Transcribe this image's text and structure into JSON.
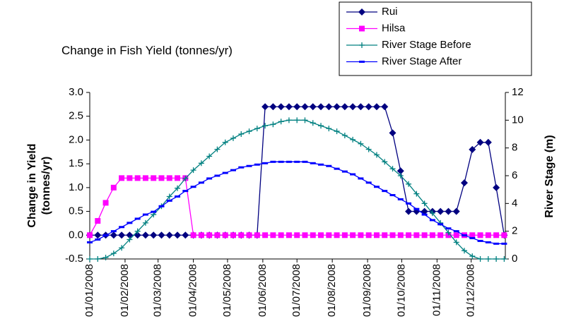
{
  "chart_data": {
    "type": "line",
    "title": "Change in Fish Yield (tonnes/yr)",
    "y_label": "Change in Yield (tonnes/yr)",
    "y2_label": "River Stage (m)",
    "x": [
      "01/01/2008",
      "08/01/2008",
      "15/01/2008",
      "22/01/2008",
      "29/01/2008",
      "05/02/2008",
      "12/02/2008",
      "19/02/2008",
      "26/02/2008",
      "04/03/2008",
      "11/03/2008",
      "18/03/2008",
      "25/03/2008",
      "01/04/2008",
      "08/04/2008",
      "15/04/2008",
      "22/04/2008",
      "29/04/2008",
      "06/05/2008",
      "13/05/2008",
      "20/05/2008",
      "27/05/2008",
      "03/06/2008",
      "10/06/2008",
      "17/06/2008",
      "24/06/2008",
      "01/07/2008",
      "08/07/2008",
      "15/07/2008",
      "22/07/2008",
      "29/07/2008",
      "05/08/2008",
      "12/08/2008",
      "19/08/2008",
      "26/08/2008",
      "02/09/2008",
      "09/09/2008",
      "16/09/2008",
      "23/09/2008",
      "30/09/2008",
      "07/10/2008",
      "14/10/2008",
      "21/10/2008",
      "28/10/2008",
      "04/11/2008",
      "11/11/2008",
      "18/11/2008",
      "25/11/2008",
      "02/12/2008",
      "09/12/2008",
      "16/12/2008",
      "23/12/2008",
      "30/12/2008"
    ],
    "xlim": [
      "01/01/2008",
      "31/12/2008"
    ],
    "xticks": [
      "01/01/2008",
      "01/02/2008",
      "01/03/2008",
      "01/04/2008",
      "01/05/2008",
      "01/06/2008",
      "01/07/2008",
      "01/08/2008",
      "01/09/2008",
      "01/10/2008",
      "01/11/2008",
      "01/12/2008"
    ],
    "ylim": [
      -0.5,
      3
    ],
    "yticks": [
      -0.5,
      {
        "value": 0,
        "label": "0.0"
      },
      0.5,
      {
        "value": 1,
        "label": "1.0"
      },
      1.5,
      {
        "value": 2,
        "label": "2.0"
      },
      2.5,
      {
        "value": 3,
        "label": "3.0"
      }
    ],
    "y2lim": [
      0,
      12
    ],
    "y2ticks": [
      0,
      2,
      4,
      6,
      8,
      10,
      12
    ],
    "grid": false,
    "legend": "top-right",
    "series": [
      {
        "name": "Rui",
        "color": "#000080",
        "marker": "diamond",
        "values": [
          0,
          0,
          0,
          0,
          0,
          0,
          0,
          0,
          0,
          0,
          0,
          0,
          0,
          0,
          0,
          0,
          0,
          0,
          0,
          0,
          0,
          0,
          2.7,
          2.7,
          2.7,
          2.7,
          2.7,
          2.7,
          2.7,
          2.7,
          2.7,
          2.7,
          2.7,
          2.7,
          2.7,
          2.7,
          2.7,
          2.7,
          2.15,
          1.35,
          0.5,
          0.5,
          0.5,
          0.5,
          0.5,
          0.5,
          0.5,
          1.1,
          1.8,
          1.95,
          1.95,
          1.0,
          0
        ]
      },
      {
        "name": "Hilsa",
        "color": "#ff00ff",
        "marker": "square",
        "values": [
          0,
          0.3,
          0.68,
          1.0,
          1.2,
          1.2,
          1.2,
          1.2,
          1.2,
          1.2,
          1.2,
          1.2,
          1.2,
          0,
          0,
          0,
          0,
          0,
          0,
          0,
          0,
          0,
          0,
          0,
          0,
          0,
          0,
          0,
          0,
          0,
          0,
          0,
          0,
          0,
          0,
          0,
          0,
          0,
          0,
          0,
          0,
          0,
          0,
          0,
          0,
          0,
          0,
          0,
          0,
          0,
          0,
          0,
          0
        ]
      },
      {
        "name": "River Stage Before",
        "color": "#008080",
        "marker": "plus",
        "axis": "y2",
        "values": [
          0,
          0,
          0.1,
          0.4,
          0.8,
          1.4,
          2.0,
          2.6,
          3.2,
          3.8,
          4.5,
          5.1,
          5.8,
          6.4,
          6.9,
          7.4,
          7.9,
          8.4,
          8.7,
          9.0,
          9.2,
          9.4,
          9.6,
          9.7,
          9.9,
          10.0,
          10.0,
          10.0,
          9.8,
          9.6,
          9.4,
          9.2,
          8.9,
          8.6,
          8.3,
          7.9,
          7.5,
          7.0,
          6.5,
          6.0,
          5.4,
          4.7,
          4.0,
          3.3,
          2.6,
          1.9,
          1.2,
          0.6,
          0.2,
          0,
          0,
          0,
          0
        ]
      },
      {
        "name": "River Stage After",
        "color": "#0000ff",
        "marker": "dash",
        "axis": "y2",
        "values": [
          1.2,
          1.4,
          1.7,
          2.0,
          2.3,
          2.6,
          2.9,
          3.2,
          3.4,
          3.8,
          4.2,
          4.5,
          4.9,
          5.2,
          5.5,
          5.8,
          6.0,
          6.2,
          6.4,
          6.6,
          6.7,
          6.8,
          6.9,
          7.0,
          7.0,
          7.0,
          7.0,
          7.0,
          6.9,
          6.8,
          6.7,
          6.5,
          6.3,
          6.1,
          5.8,
          5.5,
          5.2,
          4.9,
          4.6,
          4.3,
          4.0,
          3.6,
          3.2,
          2.8,
          2.5,
          2.2,
          2.0,
          1.7,
          1.5,
          1.3,
          1.2,
          1.1,
          1.1
        ]
      }
    ]
  }
}
